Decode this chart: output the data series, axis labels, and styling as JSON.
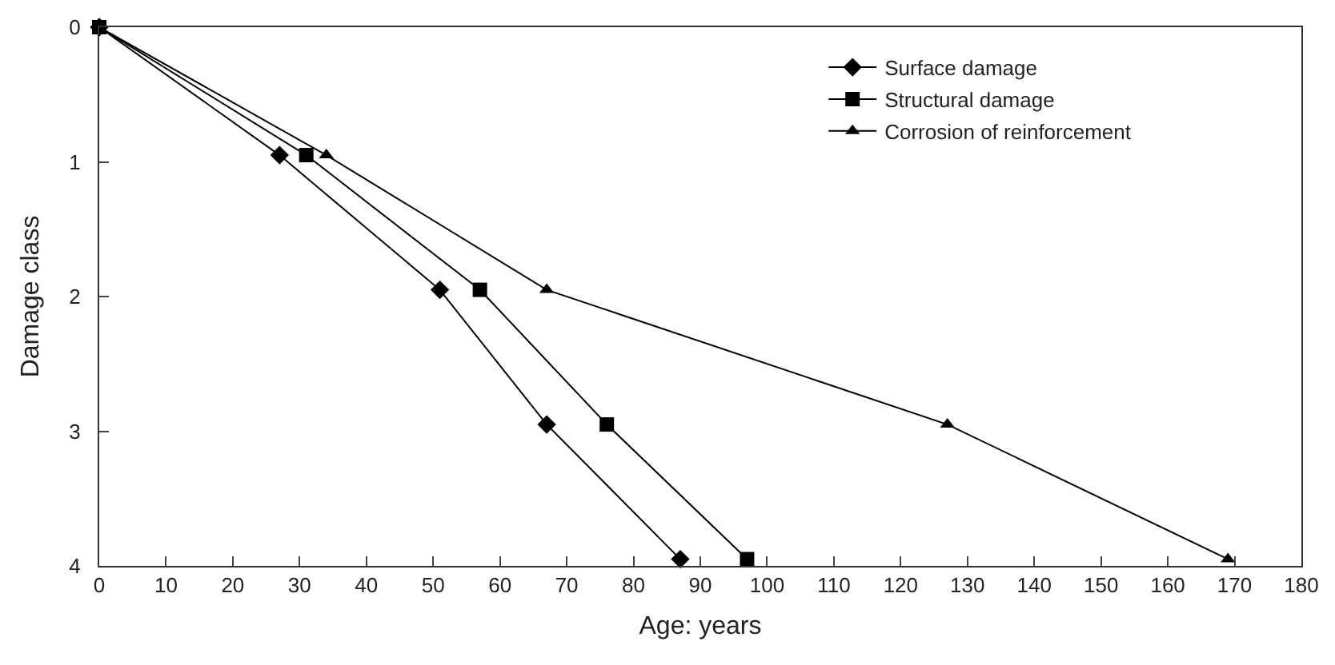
{
  "chart_data": {
    "type": "line",
    "xlabel": "Age: years",
    "ylabel": "Damage class",
    "xlim": [
      0,
      180
    ],
    "xticks": [
      0,
      10,
      20,
      30,
      40,
      50,
      60,
      70,
      80,
      90,
      100,
      110,
      120,
      130,
      140,
      150,
      160,
      170,
      180
    ],
    "ylim": [
      4,
      0
    ],
    "yticks": [
      0,
      1,
      2,
      3,
      4
    ],
    "legend": "top right",
    "line_style": "solid",
    "series": [
      {
        "name": "Surface damage",
        "color": "#000000",
        "marker": "diamond",
        "x": [
          0,
          27,
          51,
          67,
          87
        ],
        "values": [
          0,
          0.95,
          1.95,
          2.95,
          3.95
        ]
      },
      {
        "name": "Structural damage",
        "color": "#000000",
        "marker": "square",
        "x": [
          0,
          31,
          57,
          76,
          97
        ],
        "values": [
          0,
          0.95,
          1.95,
          2.95,
          3.95
        ]
      },
      {
        "name": "Corrosion of reinforcement",
        "color": "#000000",
        "marker": "triangle",
        "x": [
          0,
          34,
          67,
          127,
          169
        ],
        "values": [
          0,
          0.95,
          1.95,
          2.95,
          3.95
        ]
      }
    ]
  }
}
